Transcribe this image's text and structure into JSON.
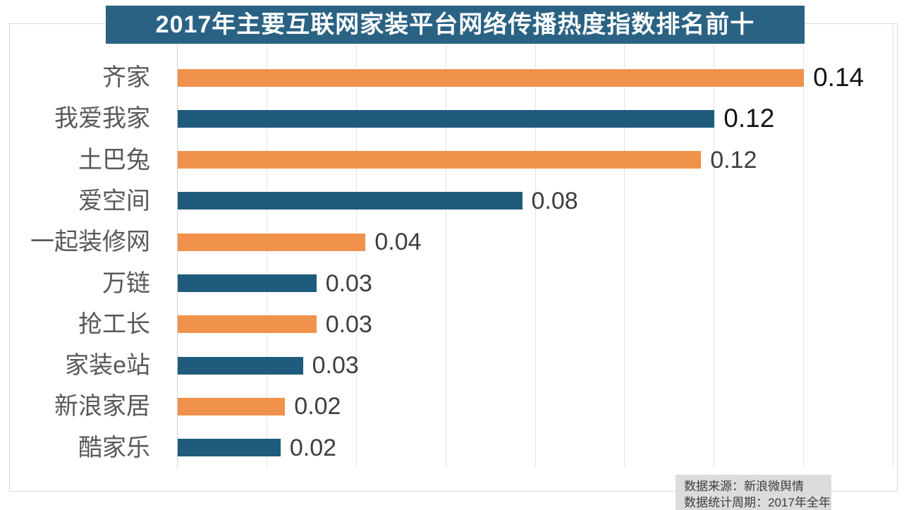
{
  "title_banner": {
    "text": "2017年主要互联网家装平台网络传播热度指数排名前十",
    "bg_color": "#2a6284",
    "text_color": "#ffffff"
  },
  "chart_data": {
    "type": "bar",
    "orientation": "horizontal",
    "title": "2017年主要互联网家装平台网络传播热度指数排名前十",
    "categories": [
      "齐家",
      "我爱我家",
      "土巴兔",
      "爱空间",
      "一起装修网",
      "万链",
      "抢工长",
      "家装e站",
      "新浪家居",
      "酷家乐"
    ],
    "values": [
      0.14,
      0.12,
      0.12,
      0.08,
      0.04,
      0.03,
      0.03,
      0.03,
      0.02,
      0.02
    ],
    "value_labels": [
      "0.14",
      "0.12",
      "0.12",
      "0.08",
      "0.04",
      "0.03",
      "0.03",
      "0.03",
      "0.02",
      "0.02"
    ],
    "bar_lengths_precise": [
      0.14,
      0.12,
      0.117,
      0.077,
      0.042,
      0.031,
      0.031,
      0.028,
      0.024,
      0.023
    ],
    "value_emphasis": [
      true,
      true,
      false,
      false,
      false,
      false,
      false,
      false,
      false,
      false
    ],
    "xlim": [
      0,
      0.16
    ],
    "grid_interval": 0.02,
    "grid": true,
    "legend": false,
    "palette": {
      "orange": "#f0924b",
      "blue": "#1f5b7d"
    },
    "color_sequence": [
      "orange",
      "blue",
      "orange",
      "blue",
      "orange",
      "blue",
      "orange",
      "blue",
      "orange",
      "blue"
    ]
  },
  "source": {
    "line1": "数据来源：新浪微舆情",
    "line2": "数据统计周期：2017年全年",
    "bg_color": "#dcdcdc",
    "text_color": "#3d3d3d"
  },
  "styles": {
    "category_label_color": "#595959",
    "value_label_color": "#3e3e3e",
    "value_label_emphasis_color": "#131313",
    "gridline_color": "#e4e4e4",
    "axis_line_color": "#d2d2d2",
    "frame_border_color": "#d9d9d9",
    "page_background": "#ffffff"
  }
}
